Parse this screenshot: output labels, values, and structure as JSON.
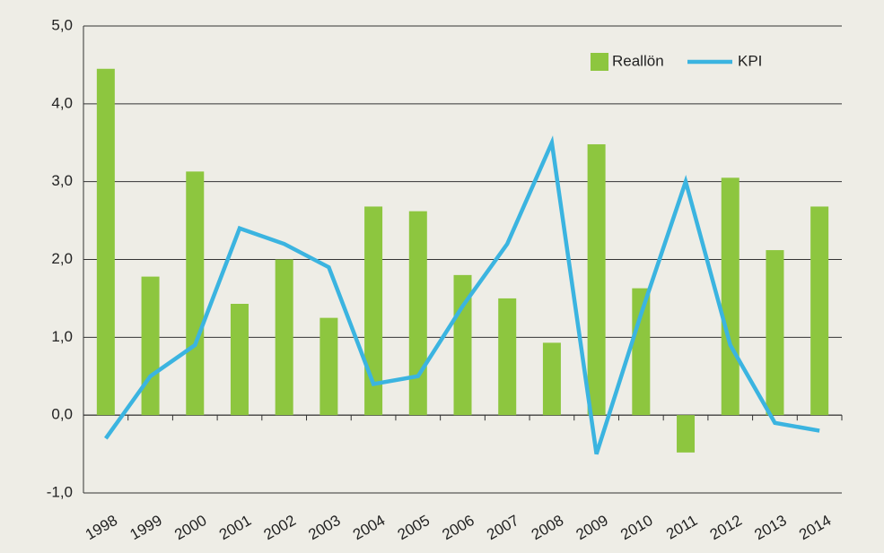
{
  "chart_data": {
    "type": "bar",
    "categories": [
      "1998",
      "1999",
      "2000",
      "2001",
      "2002",
      "2003",
      "2004",
      "2005",
      "2006",
      "2007",
      "2008",
      "2009",
      "2010",
      "2011",
      "2012",
      "2013",
      "2014"
    ],
    "series": [
      {
        "name": "Reallön",
        "type": "bar",
        "color": "#8dc63f",
        "values": [
          4.45,
          1.78,
          3.13,
          1.43,
          2.0,
          1.25,
          2.68,
          2.62,
          1.8,
          1.5,
          0.93,
          3.48,
          1.63,
          -0.48,
          3.05,
          2.12,
          2.68
        ]
      },
      {
        "name": "KPI",
        "type": "line",
        "color": "#3bb4e0",
        "values": [
          -0.3,
          0.5,
          0.9,
          2.4,
          2.2,
          1.9,
          0.4,
          0.5,
          1.4,
          2.2,
          3.5,
          -0.5,
          1.3,
          3.0,
          0.9,
          -0.1,
          -0.2
        ]
      }
    ],
    "ylim": [
      -1,
      5
    ],
    "yticks": [
      {
        "value": -1,
        "label": "-1,0"
      },
      {
        "value": 0,
        "label": "0,0"
      },
      {
        "value": 1,
        "label": "1,0"
      },
      {
        "value": 2,
        "label": "2,0"
      },
      {
        "value": 3,
        "label": "3,0"
      },
      {
        "value": 4,
        "label": "4,0"
      },
      {
        "value": 5,
        "label": "5,0"
      }
    ],
    "grid": true,
    "legend": "top-right"
  }
}
